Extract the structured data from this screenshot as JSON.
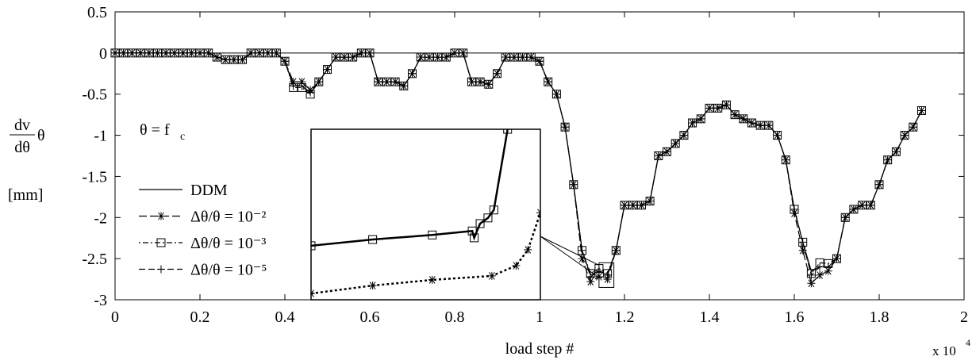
{
  "chart_data": [
    {
      "type": "line",
      "x_label": "load step #",
      "x_multiplier": {
        "text": "x 10",
        "exponent": "4"
      },
      "y_label": {
        "numerator": "dv",
        "denominator": "dθ",
        "factor": "θ",
        "unit": "[mm]"
      },
      "annotation": {
        "text": "θ = f",
        "subscript": "c"
      },
      "xlim": [
        0,
        2
      ],
      "xticks": [
        0,
        0.2,
        0.4,
        0.6,
        0.8,
        1,
        1.2,
        1.4,
        1.6,
        1.8,
        2
      ],
      "ylim": [
        -3,
        0.5
      ],
      "yticks": [
        0.5,
        0,
        -0.5,
        -1,
        -1.5,
        -2,
        -2.5,
        -3
      ],
      "hline": 0,
      "legend": "left",
      "x": [
        0,
        0.02,
        0.04,
        0.06,
        0.08,
        0.1,
        0.12,
        0.14,
        0.16,
        0.18,
        0.2,
        0.22,
        0.24,
        0.26,
        0.28,
        0.3,
        0.32,
        0.34,
        0.36,
        0.38,
        0.4,
        0.42,
        0.44,
        0.46,
        0.48,
        0.5,
        0.52,
        0.54,
        0.56,
        0.58,
        0.6,
        0.62,
        0.64,
        0.66,
        0.68,
        0.7,
        0.72,
        0.74,
        0.76,
        0.78,
        0.8,
        0.82,
        0.84,
        0.86,
        0.88,
        0.9,
        0.92,
        0.94,
        0.96,
        0.98,
        1,
        1.02,
        1.04,
        1.06,
        1.08,
        1.1,
        1.12,
        1.14,
        1.16,
        1.18,
        1.2,
        1.22,
        1.24,
        1.26,
        1.28,
        1.3,
        1.32,
        1.34,
        1.36,
        1.38,
        1.4,
        1.42,
        1.44,
        1.46,
        1.48,
        1.5,
        1.52,
        1.54,
        1.56,
        1.58,
        1.6,
        1.62,
        1.64,
        1.66,
        1.68,
        1.7,
        1.72,
        1.74,
        1.76,
        1.78,
        1.8,
        1.82,
        1.84,
        1.86,
        1.88,
        1.9
      ],
      "series": [
        {
          "name": "DDM",
          "color": "#000000",
          "dash": "none",
          "marker": "none",
          "values": [
            0,
            0,
            0,
            0,
            0,
            0,
            0,
            0,
            0,
            0,
            0,
            0,
            -0.05,
            -0.08,
            -0.08,
            -0.08,
            0,
            0,
            0,
            0,
            -0.1,
            -0.4,
            -0.4,
            -0.48,
            -0.35,
            -0.2,
            -0.05,
            -0.05,
            -0.05,
            0,
            0,
            -0.35,
            -0.35,
            -0.35,
            -0.4,
            -0.25,
            -0.05,
            -0.05,
            -0.05,
            -0.05,
            0,
            0,
            -0.35,
            -0.35,
            -0.38,
            -0.25,
            -0.05,
            -0.05,
            -0.05,
            -0.05,
            -0.1,
            -0.35,
            -0.5,
            -0.9,
            -1.6,
            -2.4,
            -2.7,
            -2.65,
            -2.7,
            -2.4,
            -1.85,
            -1.85,
            -1.85,
            -1.8,
            -1.25,
            -1.2,
            -1.1,
            -1,
            -0.85,
            -0.8,
            -0.67,
            -0.67,
            -0.63,
            -0.75,
            -0.8,
            -0.85,
            -0.88,
            -0.88,
            -1,
            -1.3,
            -1.9,
            -2.3,
            -2.65,
            -2.6,
            -2.6,
            -2.5,
            -2,
            -1.9,
            -1.85,
            -1.85,
            -1.6,
            -1.3,
            -1.2,
            -1,
            -0.9,
            -0.7
          ]
        },
        {
          "name": "Δθ/θ = 10⁻²",
          "color": "#000000",
          "dash": "10,4",
          "marker": "star",
          "values": [
            0,
            0,
            0,
            0,
            0,
            0,
            0,
            0,
            0,
            0,
            0,
            0,
            -0.05,
            -0.08,
            -0.08,
            -0.08,
            0,
            0,
            0,
            0,
            -0.1,
            -0.35,
            -0.35,
            -0.45,
            -0.35,
            -0.2,
            -0.05,
            -0.05,
            -0.05,
            0,
            0,
            -0.35,
            -0.35,
            -0.35,
            -0.4,
            -0.25,
            -0.05,
            -0.05,
            -0.05,
            -0.05,
            0,
            0,
            -0.35,
            -0.35,
            -0.38,
            -0.25,
            -0.05,
            -0.05,
            -0.05,
            -0.05,
            -0.1,
            -0.35,
            -0.5,
            -0.9,
            -1.6,
            -2.5,
            -2.78,
            -2.72,
            -2.75,
            -2.4,
            -1.85,
            -1.85,
            -1.85,
            -1.8,
            -1.25,
            -1.2,
            -1.1,
            -1,
            -0.85,
            -0.8,
            -0.67,
            -0.67,
            -0.63,
            -0.75,
            -0.8,
            -0.85,
            -0.88,
            -0.88,
            -1,
            -1.3,
            -1.95,
            -2.4,
            -2.8,
            -2.7,
            -2.65,
            -2.5,
            -2,
            -1.9,
            -1.85,
            -1.85,
            -1.6,
            -1.3,
            -1.2,
            -1,
            -0.9,
            -0.7
          ]
        },
        {
          "name": "Δθ/θ = 10⁻³",
          "color": "#000000",
          "dash": "2,3,7,3",
          "marker": "square",
          "values": [
            0,
            0,
            0,
            0,
            0,
            0,
            0,
            0,
            0,
            0,
            0,
            0,
            -0.05,
            -0.08,
            -0.08,
            -0.08,
            0,
            0,
            0,
            0,
            -0.1,
            -0.42,
            -0.42,
            -0.5,
            -0.35,
            -0.2,
            -0.05,
            -0.05,
            -0.05,
            0,
            0,
            -0.35,
            -0.35,
            -0.35,
            -0.4,
            -0.25,
            -0.05,
            -0.05,
            -0.05,
            -0.05,
            0,
            0,
            -0.35,
            -0.35,
            -0.38,
            -0.25,
            -0.05,
            -0.05,
            -0.05,
            -0.05,
            -0.1,
            -0.35,
            -0.5,
            -0.9,
            -1.6,
            -2.4,
            -2.68,
            -2.62,
            -2.68,
            -2.4,
            -1.85,
            -1.85,
            -1.85,
            -1.8,
            -1.25,
            -1.2,
            -1.1,
            -1,
            -0.85,
            -0.8,
            -0.67,
            -0.67,
            -0.63,
            -0.75,
            -0.8,
            -0.85,
            -0.88,
            -0.88,
            -1,
            -1.3,
            -1.9,
            -2.3,
            -2.68,
            -2.55,
            -2.56,
            -2.5,
            -2,
            -1.9,
            -1.85,
            -1.85,
            -1.6,
            -1.3,
            -1.2,
            -1,
            -0.9,
            -0.7
          ]
        },
        {
          "name": "Δθ/θ = 10⁻⁵",
          "color": "#000000",
          "dash": "8,4",
          "marker": "plus",
          "values": [
            0,
            0,
            0,
            0,
            0,
            0,
            0,
            0,
            0,
            0,
            0,
            0,
            -0.05,
            -0.08,
            -0.08,
            -0.08,
            0,
            0,
            0,
            0,
            -0.1,
            -0.4,
            -0.4,
            -0.48,
            -0.35,
            -0.2,
            -0.05,
            -0.05,
            -0.05,
            0,
            0,
            -0.35,
            -0.35,
            -0.35,
            -0.4,
            -0.25,
            -0.05,
            -0.05,
            -0.05,
            -0.05,
            0,
            0,
            -0.35,
            -0.35,
            -0.38,
            -0.25,
            -0.05,
            -0.05,
            -0.05,
            -0.05,
            -0.1,
            -0.35,
            -0.5,
            -0.9,
            -1.6,
            -2.4,
            -2.72,
            -2.65,
            -2.7,
            -2.4,
            -1.85,
            -1.85,
            -1.85,
            -1.8,
            -1.25,
            -1.2,
            -1.1,
            -1,
            -0.85,
            -0.8,
            -0.67,
            -0.67,
            -0.63,
            -0.75,
            -0.8,
            -0.85,
            -0.88,
            -0.88,
            -1,
            -1.3,
            -1.9,
            -2.3,
            -2.7,
            -2.6,
            -2.6,
            -2.5,
            -2,
            -1.9,
            -1.85,
            -1.85,
            -1.6,
            -1.3,
            -1.2,
            -1,
            -0.9,
            -0.7
          ]
        }
      ]
    },
    {
      "type": "line",
      "inset": true,
      "xlim": [
        1.14,
        1.175
      ],
      "ylim": [
        -2.85,
        -2.55
      ],
      "series": [
        {
          "color": "#000000",
          "dash": "none",
          "marker": "square",
          "x": [
            1.14,
            1.1494,
            1.1585,
            1.1646,
            1.1649,
            1.1658,
            1.167,
            1.1679,
            1.17
          ],
          "values": [
            -2.755,
            -2.744,
            -2.736,
            -2.729,
            -2.741,
            -2.716,
            -2.706,
            -2.692,
            -2.55
          ]
        },
        {
          "color": "#000000",
          "dash": "3,3",
          "marker": "star",
          "x": [
            1.14,
            1.1494,
            1.1585,
            1.1676,
            1.1713,
            1.1731,
            1.175
          ],
          "values": [
            -2.839,
            -2.825,
            -2.815,
            -2.808,
            -2.79,
            -2.762,
            -2.697
          ]
        }
      ]
    }
  ]
}
